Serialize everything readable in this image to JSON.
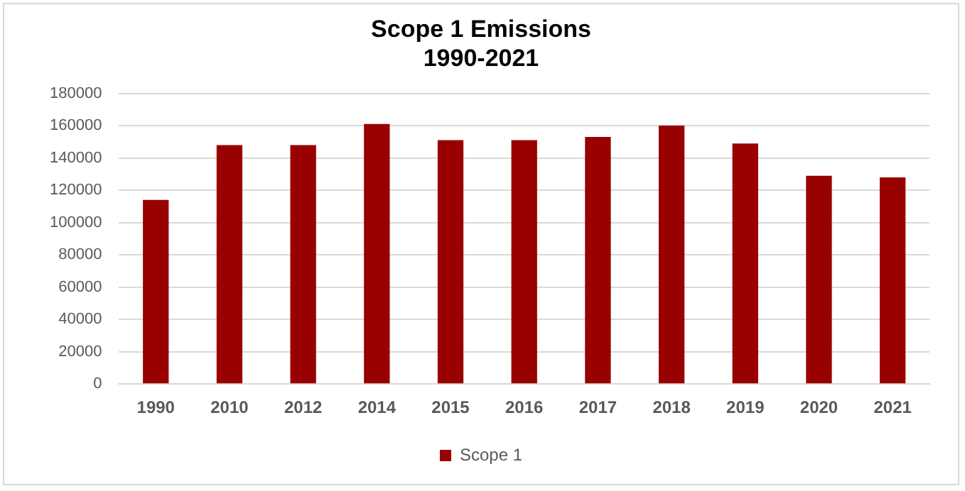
{
  "chart_data": {
    "type": "bar",
    "title": "Scope 1 Emissions\n1990-2021",
    "categories": [
      "1990",
      "2010",
      "2012",
      "2014",
      "2015",
      "2016",
      "2017",
      "2018",
      "2019",
      "2020",
      "2021"
    ],
    "series": [
      {
        "name": "Scope 1",
        "color": "#990000",
        "values": [
          114000,
          148000,
          148000,
          161000,
          151000,
          151000,
          153000,
          160000,
          149000,
          129000,
          128000
        ]
      }
    ],
    "ylim": [
      0,
      180000
    ],
    "yticks": [
      0,
      20000,
      40000,
      60000,
      80000,
      100000,
      120000,
      140000,
      160000,
      180000
    ],
    "grid": "y",
    "legend": "bottom"
  }
}
